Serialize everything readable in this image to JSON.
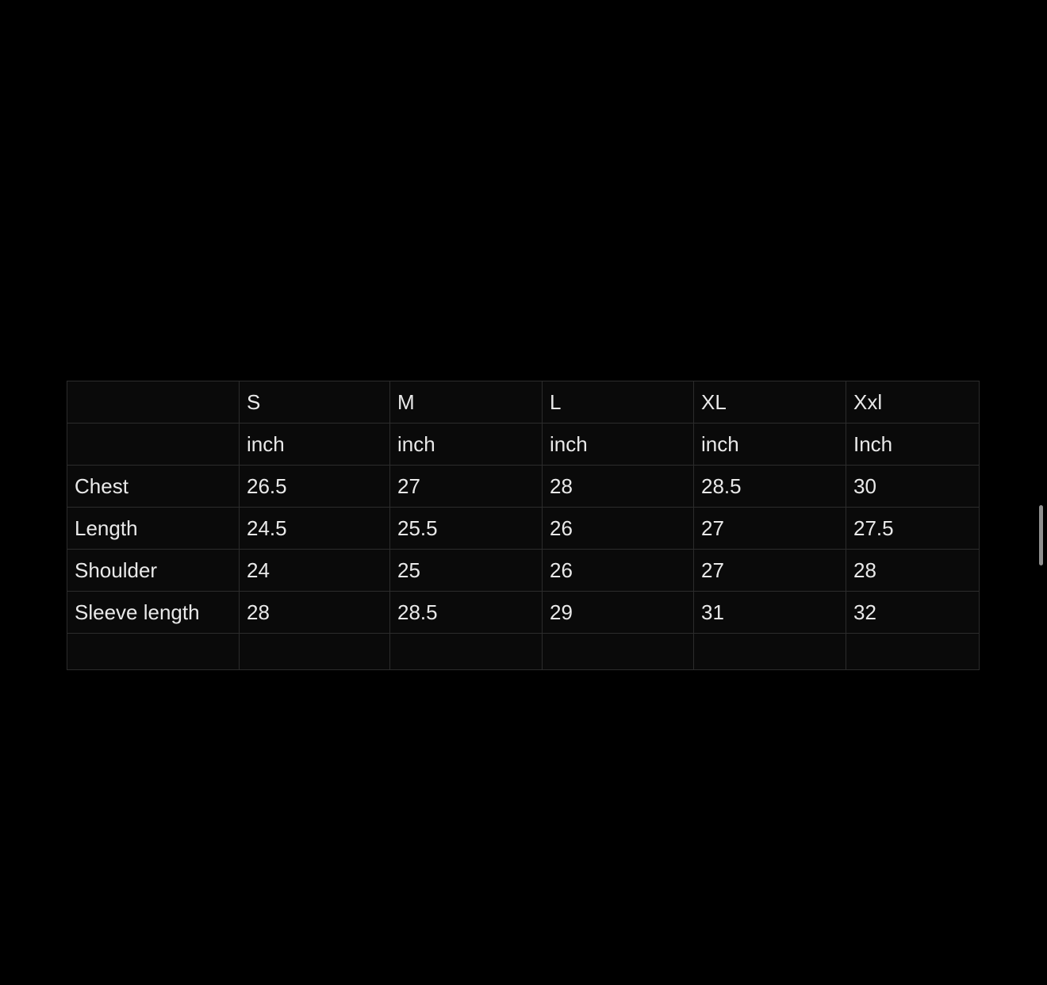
{
  "page": {
    "background_color": "#000000",
    "table_cell_color": "#0a0a0a",
    "table_border_color": "#2c2c2c",
    "text_color": "#e9e9e9",
    "scrollbar_color": "#8f8f8f"
  },
  "size_chart": {
    "size_header": [
      "S",
      "M",
      "L",
      "XL",
      "Xxl"
    ],
    "unit_header": [
      "inch",
      "inch",
      "inch",
      "inch",
      "Inch"
    ],
    "rows": [
      {
        "label": "Chest",
        "values": [
          "26.5",
          "27",
          "28",
          "28.5",
          "30"
        ]
      },
      {
        "label": "Length",
        "values": [
          "24.5",
          "25.5",
          "26",
          "27",
          "27.5"
        ]
      },
      {
        "label": "Shoulder",
        "values": [
          "24",
          "25",
          "26",
          "27",
          "28"
        ]
      },
      {
        "label": "Sleeve length",
        "values": [
          "28",
          "28.5",
          "29",
          "31",
          "32"
        ]
      }
    ]
  }
}
